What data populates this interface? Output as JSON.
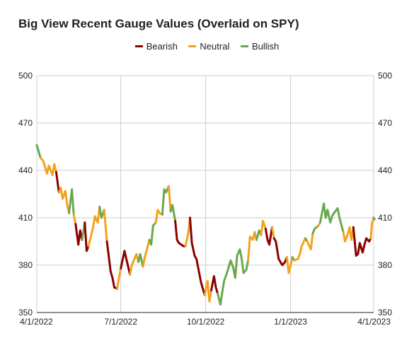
{
  "colors": {
    "bearish": "#8b0000",
    "neutral": "#f4a21d",
    "bullish": "#6aa84f",
    "grid": "#cccccc",
    "axis": "#222222"
  },
  "chart_data": {
    "type": "line",
    "title": "Big View Recent Gauge Values (Overlaid on SPY)",
    "legend_position": "top-center",
    "grid": true,
    "legend": [
      {
        "key": "bearish",
        "label": "Bearish"
      },
      {
        "key": "neutral",
        "label": "Neutral"
      },
      {
        "key": "bullish",
        "label": "Bullish"
      }
    ],
    "x_ticks": [
      "4/1/2022",
      "7/1/2022",
      "10/1/2022",
      "1/1/2023",
      "4/1/2023"
    ],
    "xlim": [
      "2022-04-01",
      "2023-04-01"
    ],
    "ylim": [
      350,
      500
    ],
    "y_ticks_left": [
      "350",
      "380",
      "410",
      "440",
      "470",
      "500"
    ],
    "y_ticks_right": [
      "350",
      "380",
      "410",
      "440",
      "470",
      "500"
    ],
    "series": [
      {
        "gauge": "bullish",
        "points": [
          [
            "2022-04-01",
            456
          ],
          [
            "2022-04-05",
            448
          ]
        ]
      },
      {
        "gauge": "neutral",
        "points": [
          [
            "2022-04-05",
            448
          ],
          [
            "2022-04-08",
            446
          ],
          [
            "2022-04-12",
            438
          ],
          [
            "2022-04-14",
            443
          ],
          [
            "2022-04-18",
            437
          ],
          [
            "2022-04-20",
            444
          ],
          [
            "2022-04-22",
            439
          ]
        ]
      },
      {
        "gauge": "bearish",
        "points": [
          [
            "2022-04-22",
            439
          ],
          [
            "2022-04-25",
            426
          ]
        ]
      },
      {
        "gauge": "neutral",
        "points": [
          [
            "2022-04-25",
            426
          ],
          [
            "2022-04-27",
            429
          ],
          [
            "2022-04-29",
            422
          ],
          [
            "2022-05-02",
            427
          ],
          [
            "2022-05-04",
            418
          ],
          [
            "2022-05-06",
            413
          ]
        ]
      },
      {
        "gauge": "bullish",
        "points": [
          [
            "2022-05-06",
            413
          ],
          [
            "2022-05-09",
            428
          ],
          [
            "2022-05-11",
            412
          ]
        ]
      },
      {
        "gauge": "neutral",
        "points": [
          [
            "2022-05-11",
            412
          ],
          [
            "2022-05-13",
            406
          ]
        ]
      },
      {
        "gauge": "bearish",
        "points": [
          [
            "2022-05-13",
            406
          ],
          [
            "2022-05-16",
            393
          ],
          [
            "2022-05-18",
            402
          ],
          [
            "2022-05-20",
            396
          ]
        ]
      },
      {
        "gauge": "bullish",
        "points": [
          [
            "2022-05-20",
            396
          ],
          [
            "2022-05-23",
            407
          ]
        ]
      },
      {
        "gauge": "bearish",
        "points": [
          [
            "2022-05-23",
            407
          ],
          [
            "2022-05-25",
            389
          ],
          [
            "2022-05-27",
            392
          ]
        ]
      },
      {
        "gauge": "neutral",
        "points": [
          [
            "2022-05-27",
            392
          ],
          [
            "2022-06-01",
            404
          ],
          [
            "2022-06-03",
            411
          ],
          [
            "2022-06-06",
            407
          ],
          [
            "2022-06-08",
            417
          ]
        ]
      },
      {
        "gauge": "bullish",
        "points": [
          [
            "2022-06-08",
            417
          ],
          [
            "2022-06-10",
            410
          ],
          [
            "2022-06-13",
            415
          ]
        ]
      },
      {
        "gauge": "neutral",
        "points": [
          [
            "2022-06-13",
            415
          ],
          [
            "2022-06-16",
            395
          ]
        ]
      },
      {
        "gauge": "bearish",
        "points": [
          [
            "2022-06-16",
            395
          ],
          [
            "2022-06-20",
            376
          ],
          [
            "2022-06-22",
            372
          ],
          [
            "2022-06-24",
            366
          ],
          [
            "2022-06-27",
            365
          ]
        ]
      },
      {
        "gauge": "neutral",
        "points": [
          [
            "2022-06-27",
            365
          ],
          [
            "2022-06-29",
            372
          ],
          [
            "2022-07-01",
            378
          ]
        ]
      },
      {
        "gauge": "bearish",
        "points": [
          [
            "2022-07-01",
            378
          ],
          [
            "2022-07-05",
            389
          ],
          [
            "2022-07-07",
            384
          ],
          [
            "2022-07-11",
            374
          ]
        ]
      },
      {
        "gauge": "neutral",
        "points": [
          [
            "2022-07-11",
            374
          ],
          [
            "2022-07-13",
            380
          ],
          [
            "2022-07-18",
            387
          ],
          [
            "2022-07-20",
            382
          ]
        ]
      },
      {
        "gauge": "bullish",
        "points": [
          [
            "2022-07-20",
            382
          ],
          [
            "2022-07-22",
            387
          ],
          [
            "2022-07-25",
            379
          ]
        ]
      },
      {
        "gauge": "neutral",
        "points": [
          [
            "2022-07-25",
            379
          ],
          [
            "2022-07-27",
            385
          ],
          [
            "2022-08-01",
            396
          ]
        ]
      },
      {
        "gauge": "bullish",
        "points": [
          [
            "2022-08-01",
            396
          ],
          [
            "2022-08-03",
            393
          ],
          [
            "2022-08-05",
            405
          ],
          [
            "2022-08-08",
            407
          ]
        ]
      },
      {
        "gauge": "neutral",
        "points": [
          [
            "2022-08-08",
            407
          ],
          [
            "2022-08-10",
            415
          ],
          [
            "2022-08-12",
            413
          ],
          [
            "2022-08-15",
            412
          ]
        ]
      },
      {
        "gauge": "bullish",
        "points": [
          [
            "2022-08-15",
            412
          ],
          [
            "2022-08-17",
            428
          ],
          [
            "2022-08-19",
            426
          ],
          [
            "2022-08-22",
            430
          ]
        ]
      },
      {
        "gauge": "neutral",
        "points": [
          [
            "2022-08-22",
            430
          ],
          [
            "2022-08-24",
            414
          ]
        ]
      },
      {
        "gauge": "bullish",
        "points": [
          [
            "2022-08-24",
            414
          ],
          [
            "2022-08-26",
            418
          ],
          [
            "2022-08-29",
            408
          ]
        ]
      },
      {
        "gauge": "bearish",
        "points": [
          [
            "2022-08-29",
            408
          ],
          [
            "2022-08-31",
            396
          ],
          [
            "2022-09-02",
            394
          ],
          [
            "2022-09-07",
            392
          ],
          [
            "2022-09-09",
            392
          ]
        ]
      },
      {
        "gauge": "neutral",
        "points": [
          [
            "2022-09-09",
            392
          ],
          [
            "2022-09-12",
            400
          ],
          [
            "2022-09-14",
            410
          ]
        ]
      },
      {
        "gauge": "bearish",
        "points": [
          [
            "2022-09-14",
            410
          ],
          [
            "2022-09-16",
            394
          ],
          [
            "2022-09-19",
            386
          ],
          [
            "2022-09-21",
            384
          ],
          [
            "2022-09-23",
            378
          ],
          [
            "2022-09-26",
            369
          ],
          [
            "2022-09-28",
            365
          ],
          [
            "2022-09-30",
            361
          ]
        ]
      },
      {
        "gauge": "neutral",
        "points": [
          [
            "2022-09-30",
            361
          ],
          [
            "2022-10-03",
            370
          ],
          [
            "2022-10-05",
            357
          ],
          [
            "2022-10-07",
            364
          ]
        ]
      },
      {
        "gauge": "bearish",
        "points": [
          [
            "2022-10-07",
            364
          ],
          [
            "2022-10-10",
            373
          ],
          [
            "2022-10-12",
            366
          ],
          [
            "2022-10-14",
            362
          ]
        ]
      },
      {
        "gauge": "bullish",
        "points": [
          [
            "2022-10-14",
            362
          ],
          [
            "2022-10-17",
            355
          ],
          [
            "2022-10-19",
            363
          ],
          [
            "2022-10-21",
            370
          ],
          [
            "2022-10-24",
            375
          ],
          [
            "2022-10-26",
            379
          ],
          [
            "2022-10-28",
            383
          ],
          [
            "2022-10-31",
            378
          ],
          [
            "2022-11-02",
            372
          ],
          [
            "2022-11-04",
            386
          ],
          [
            "2022-11-07",
            390
          ],
          [
            "2022-11-09",
            384
          ],
          [
            "2022-11-11",
            375
          ],
          [
            "2022-11-14",
            377
          ],
          [
            "2022-11-16",
            383
          ]
        ]
      },
      {
        "gauge": "neutral",
        "points": [
          [
            "2022-11-16",
            383
          ],
          [
            "2022-11-18",
            398
          ],
          [
            "2022-11-21",
            396
          ],
          [
            "2022-11-23",
            401
          ],
          [
            "2022-11-25",
            396
          ]
        ]
      },
      {
        "gauge": "bullish",
        "points": [
          [
            "2022-11-25",
            396
          ],
          [
            "2022-11-28",
            402
          ],
          [
            "2022-11-30",
            399
          ]
        ]
      },
      {
        "gauge": "neutral",
        "points": [
          [
            "2022-11-30",
            399
          ],
          [
            "2022-12-02",
            408
          ],
          [
            "2022-12-05",
            403
          ]
        ]
      },
      {
        "gauge": "bearish",
        "points": [
          [
            "2022-12-05",
            403
          ],
          [
            "2022-12-07",
            396
          ],
          [
            "2022-12-09",
            393
          ],
          [
            "2022-12-12",
            404
          ]
        ]
      },
      {
        "gauge": "neutral",
        "points": [
          [
            "2022-12-12",
            404
          ],
          [
            "2022-12-14",
            397
          ]
        ]
      },
      {
        "gauge": "bearish",
        "points": [
          [
            "2022-12-14",
            397
          ],
          [
            "2022-12-16",
            395
          ],
          [
            "2022-12-19",
            384
          ],
          [
            "2022-12-21",
            382
          ],
          [
            "2022-12-23",
            380
          ],
          [
            "2022-12-26",
            382
          ],
          [
            "2022-12-28",
            385
          ]
        ]
      },
      {
        "gauge": "neutral",
        "points": [
          [
            "2022-12-28",
            385
          ],
          [
            "2022-12-30",
            375
          ],
          [
            "2023-01-03",
            385
          ]
        ]
      },
      {
        "gauge": "bullish",
        "points": [
          [
            "2023-01-03",
            385
          ],
          [
            "2023-01-05",
            383
          ]
        ]
      },
      {
        "gauge": "neutral",
        "points": [
          [
            "2023-01-05",
            383
          ],
          [
            "2023-01-09",
            384
          ],
          [
            "2023-01-11",
            387
          ],
          [
            "2023-01-13",
            392
          ],
          [
            "2023-01-17",
            397
          ]
        ]
      },
      {
        "gauge": "bullish",
        "points": [
          [
            "2023-01-17",
            397
          ],
          [
            "2023-01-19",
            395
          ]
        ]
      },
      {
        "gauge": "neutral",
        "points": [
          [
            "2023-01-19",
            395
          ],
          [
            "2023-01-23",
            390
          ],
          [
            "2023-01-25",
            400
          ]
        ]
      },
      {
        "gauge": "bullish",
        "points": [
          [
            "2023-01-25",
            400
          ],
          [
            "2023-01-27",
            403
          ],
          [
            "2023-01-31",
            405
          ]
        ]
      },
      {
        "gauge": "neutral",
        "points": [
          [
            "2023-01-31",
            405
          ],
          [
            "2023-02-02",
            407
          ]
        ]
      },
      {
        "gauge": "bullish",
        "points": [
          [
            "2023-02-02",
            407
          ],
          [
            "2023-02-06",
            419
          ],
          [
            "2023-02-08",
            410
          ],
          [
            "2023-02-10",
            415
          ],
          [
            "2023-02-13",
            407
          ],
          [
            "2023-02-15",
            411
          ],
          [
            "2023-02-17",
            413
          ],
          [
            "2023-02-21",
            416
          ],
          [
            "2023-02-23",
            410
          ],
          [
            "2023-02-27",
            401
          ]
        ]
      },
      {
        "gauge": "neutral",
        "points": [
          [
            "2023-02-27",
            401
          ],
          [
            "2023-03-01",
            395
          ],
          [
            "2023-03-03",
            398
          ],
          [
            "2023-03-06",
            404
          ],
          [
            "2023-03-08",
            396
          ],
          [
            "2023-03-10",
            404
          ]
        ]
      },
      {
        "gauge": "bearish",
        "points": [
          [
            "2023-03-10",
            404
          ],
          [
            "2023-03-13",
            386
          ],
          [
            "2023-03-15",
            387
          ],
          [
            "2023-03-17",
            394
          ],
          [
            "2023-03-20",
            388
          ],
          [
            "2023-03-22",
            393
          ],
          [
            "2023-03-24",
            397
          ],
          [
            "2023-03-27",
            395
          ],
          [
            "2023-03-29",
            397
          ]
        ]
      },
      {
        "gauge": "neutral",
        "points": [
          [
            "2023-03-29",
            397
          ],
          [
            "2023-03-30",
            406
          ],
          [
            "2023-04-01",
            410
          ]
        ]
      },
      {
        "gauge": "bullish",
        "points": [
          [
            "2023-04-01",
            410
          ],
          [
            "2023-04-02",
            409
          ]
        ]
      }
    ]
  }
}
